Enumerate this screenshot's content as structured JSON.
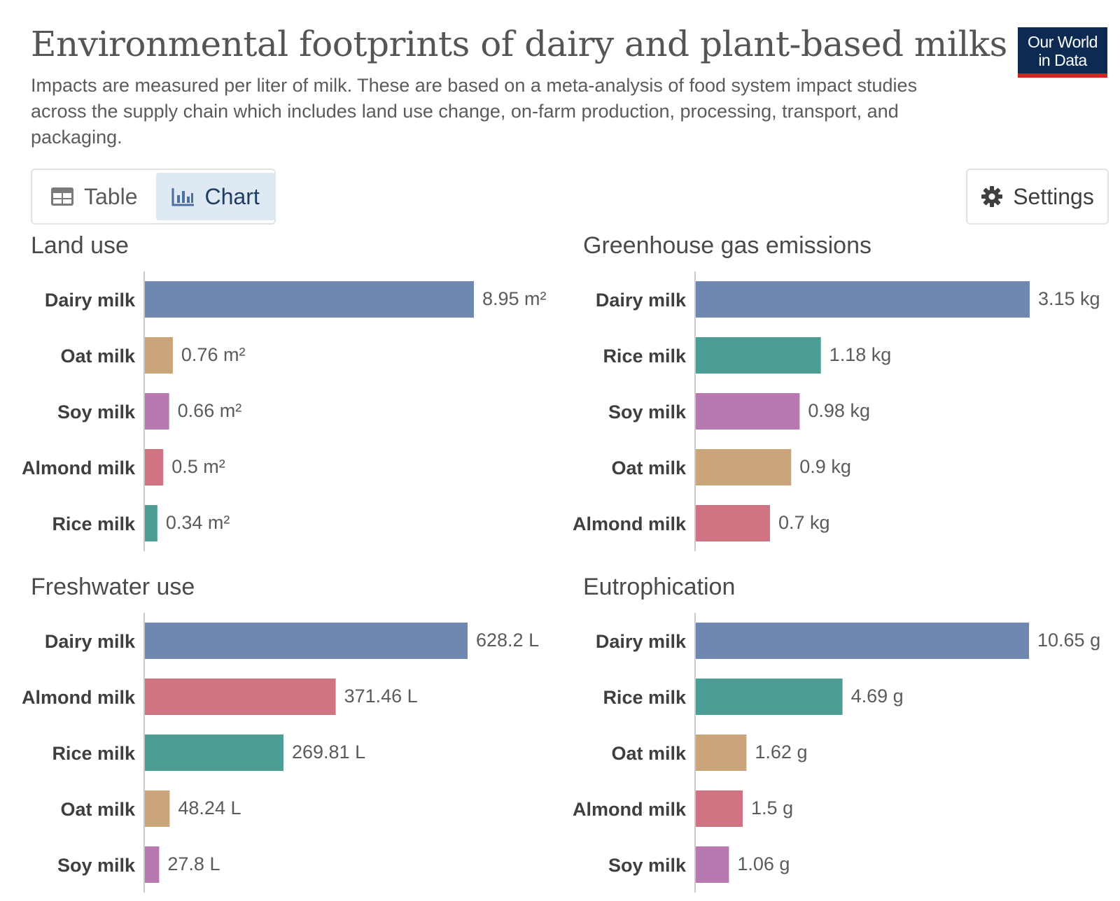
{
  "header": {
    "title": "Environmental footprints of dairy and plant-based milks",
    "subtitle": "Impacts are measured per liter of milk. These are based on a meta-analysis of food system impact studies across the supply chain which includes land use change, on-farm production, processing, transport, and packaging."
  },
  "logo": {
    "line1": "Our World",
    "line2": "in Data"
  },
  "tabs": [
    {
      "label": "Table",
      "icon": "table-icon",
      "active": false
    },
    {
      "label": "Chart",
      "icon": "chart-icon",
      "active": true
    }
  ],
  "settings": {
    "label": "Settings",
    "icon": "gear-icon"
  },
  "colors": {
    "Dairy milk": "#6f88b1",
    "Oat milk": "#cba57a",
    "Soy milk": "#b679b2",
    "Almond milk": "#d07483",
    "Rice milk": "#4b9d95",
    "axis": "#c8c8c8",
    "label": "#3f3f3f",
    "value": "#5b5b5b"
  },
  "chart_data": [
    {
      "type": "bar",
      "orientation": "horizontal",
      "title": "Land use",
      "unit": "m²",
      "categories": [
        "Dairy milk",
        "Oat milk",
        "Soy milk",
        "Almond milk",
        "Rice milk"
      ],
      "values": [
        8.95,
        0.76,
        0.66,
        0.5,
        0.34
      ],
      "value_labels": [
        "8.95 m²",
        "0.76 m²",
        "0.66 m²",
        "0.5 m²",
        "0.34 m²"
      ]
    },
    {
      "type": "bar",
      "orientation": "horizontal",
      "title": "Greenhouse gas emissions",
      "unit": "kg",
      "categories": [
        "Dairy milk",
        "Rice milk",
        "Soy milk",
        "Oat milk",
        "Almond milk"
      ],
      "values": [
        3.15,
        1.18,
        0.98,
        0.9,
        0.7
      ],
      "value_labels": [
        "3.15 kg",
        "1.18 kg",
        "0.98 kg",
        "0.9 kg",
        "0.7 kg"
      ]
    },
    {
      "type": "bar",
      "orientation": "horizontal",
      "title": "Freshwater use",
      "unit": "L",
      "categories": [
        "Dairy milk",
        "Almond milk",
        "Rice milk",
        "Oat milk",
        "Soy milk"
      ],
      "values": [
        628.2,
        371.46,
        269.81,
        48.24,
        27.8
      ],
      "value_labels": [
        "628.2 L",
        "371.46 L",
        "269.81 L",
        "48.24 L",
        "27.8 L"
      ]
    },
    {
      "type": "bar",
      "orientation": "horizontal",
      "title": "Eutrophication",
      "unit": "g",
      "categories": [
        "Dairy milk",
        "Rice milk",
        "Oat milk",
        "Almond milk",
        "Soy milk"
      ],
      "values": [
        10.65,
        4.69,
        1.62,
        1.5,
        1.06
      ],
      "value_labels": [
        "10.65 g",
        "4.69 g",
        "1.62 g",
        "1.5 g",
        "1.06 g"
      ]
    }
  ]
}
